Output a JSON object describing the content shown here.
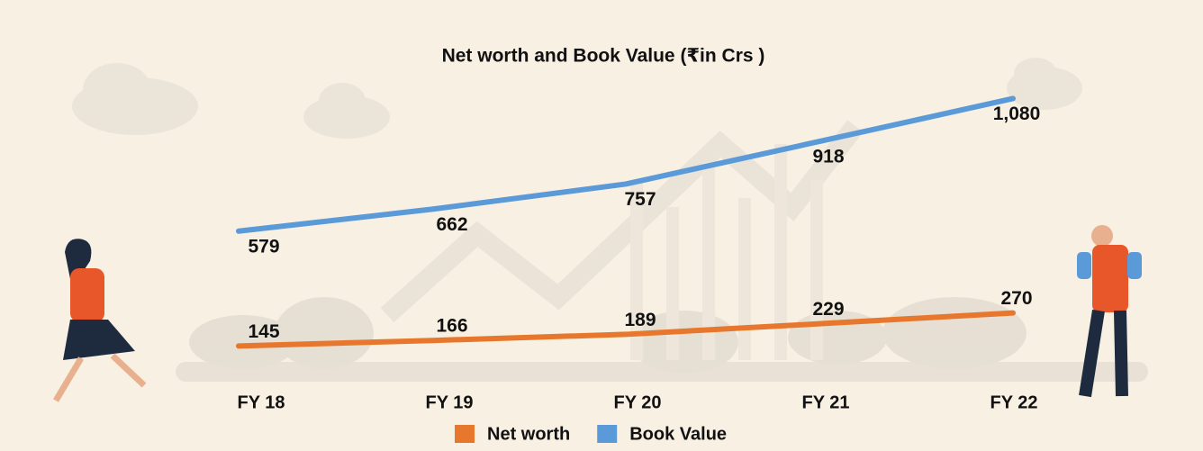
{
  "chart_data": {
    "type": "line",
    "title": "Net worth and Book Value (₹in Crs )",
    "categories": [
      "FY 18",
      "FY 19",
      "FY 20",
      "FY 21",
      "FY 22"
    ],
    "series": [
      {
        "name": "Net worth",
        "color": "#e8772e",
        "values": [
          145,
          166,
          189,
          229,
          270
        ]
      },
      {
        "name": "Book Value",
        "color": "#5b9ad8",
        "values": [
          579,
          662,
          757,
          918,
          1080
        ],
        "value_labels": [
          "579",
          "662",
          "757",
          "918",
          "1,080"
        ]
      }
    ]
  }
}
